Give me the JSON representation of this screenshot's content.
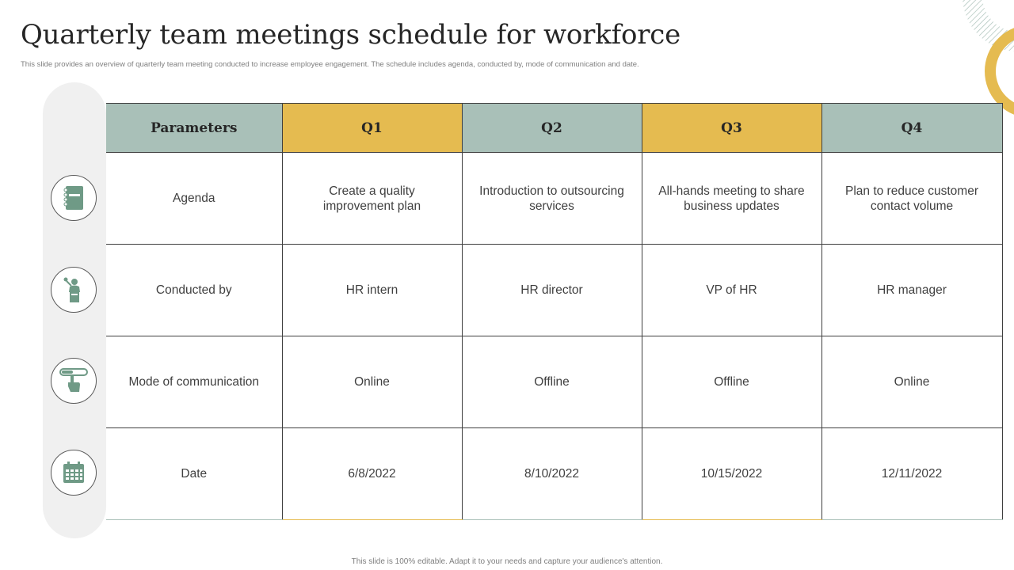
{
  "slide": {
    "title": "Quarterly team meetings schedule for workforce",
    "subtitle": "This slide provides an overview of quarterly team meeting conducted to increase employee engagement. The schedule includes agenda, conducted by, mode of communication and date.",
    "footer": "This slide is 100% editable. Adapt it to your needs and capture your audience's attention."
  },
  "colors": {
    "header_green": "#a9c0b8",
    "header_yellow": "#e5bb50",
    "icon_green": "#6f9a86",
    "decor_yellow": "#e5bb50"
  },
  "table": {
    "headers": [
      "Parameters",
      "Q1",
      "Q2",
      "Q3",
      "Q4"
    ],
    "rows": [
      {
        "icon": "agenda-notebook-icon",
        "cells": [
          "Agenda",
          "Create a quality improvement plan",
          "Introduction  to outsourcing services",
          "All-hands meeting to share business updates",
          "Plan to reduce customer contact volume"
        ]
      },
      {
        "icon": "presenter-icon",
        "cells": [
          "Conducted by",
          "HR intern",
          "HR director",
          "VP of HR",
          "HR manager"
        ]
      },
      {
        "icon": "hand-touch-icon",
        "cells": [
          "Mode of communication",
          "Online",
          "Offline",
          "Offline",
          "Online"
        ]
      },
      {
        "icon": "calendar-icon",
        "cells": [
          "Date",
          "6/8/2022",
          "8/10/2022",
          "10/15/2022",
          "12/11/2022"
        ]
      }
    ]
  }
}
